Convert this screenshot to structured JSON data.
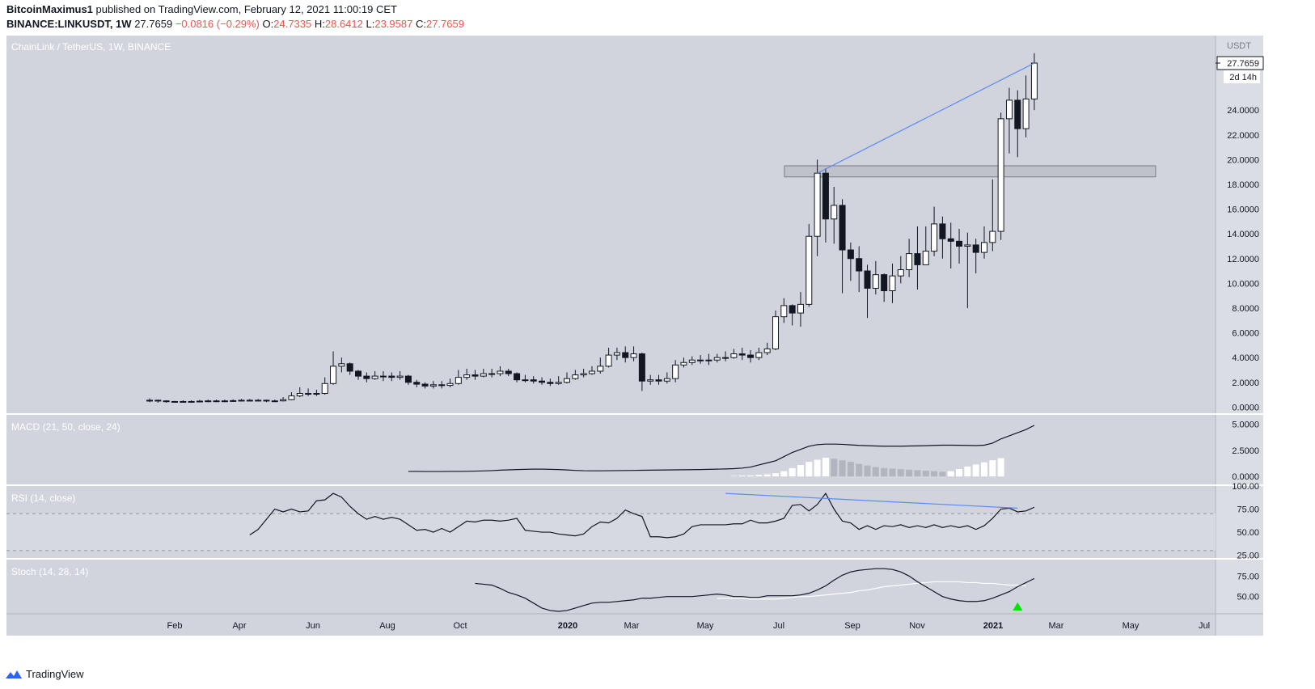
{
  "header": {
    "author": "BitcoinMaximus1",
    "published": " published on TradingView.com, February 12, 2021 11:00:19 CET",
    "symbol": "BINANCE:LINKUSDT, 1W",
    "price": "27.7659",
    "change": "−0.0816 (−0.29%)",
    "o_label": "O:",
    "o": "24.7335",
    "h_label": "H:",
    "h": "28.6412",
    "l_label": "L:",
    "l": "23.9587",
    "c_label": "C:",
    "c": "27.7659"
  },
  "main_title": "ChainLink / TetherUS, 1W, BINANCE",
  "axis_unit": "USDT",
  "price_tag": "27.7659",
  "countdown": "2d 14h",
  "footer_brand": "TradingView",
  "colors": {
    "background": "#d1d4dc",
    "candle_up": "#ffffff",
    "candle_down": "#131722",
    "trendline": "#5b8def",
    "zone_fill": "#bfc2c8",
    "macd_hist": "#b2b5be",
    "stoch_signal": "#ffffff",
    "arrow": "#00e600"
  },
  "chart_data": [
    {
      "type": "candlestick",
      "title": "ChainLink / TetherUS, 1W, BINANCE",
      "ylabel": "USDT",
      "ylim": [
        -0.5,
        29.5
      ],
      "y_ticks": [
        "0.0000",
        "2.0000",
        "4.0000",
        "6.0000",
        "8.0000",
        "10.0000",
        "12.0000",
        "14.0000",
        "16.0000",
        "18.0000",
        "20.0000",
        "22.0000",
        "24.0000"
      ],
      "x_ticks": [
        "Feb",
        "Apr",
        "Jun",
        "Aug",
        "Oct",
        "2020",
        "Mar",
        "May",
        "Jul",
        "Sep",
        "Nov",
        "2021",
        "Mar",
        "May",
        "Jul"
      ],
      "closes": [
        0.55,
        0.5,
        0.45,
        0.42,
        0.45,
        0.45,
        0.48,
        0.5,
        0.5,
        0.5,
        0.52,
        0.55,
        0.55,
        0.55,
        0.5,
        0.5,
        0.6,
        0.9,
        1.1,
        1.1,
        1.1,
        1.9,
        3.3,
        3.5,
        2.9,
        2.5,
        2.3,
        2.5,
        2.5,
        2.4,
        2.5,
        2.0,
        1.85,
        1.7,
        1.8,
        1.75,
        1.9,
        2.4,
        2.6,
        2.5,
        2.7,
        2.7,
        2.9,
        2.7,
        2.2,
        2.2,
        2.1,
        2.0,
        1.9,
        2.0,
        2.3,
        2.6,
        2.7,
        2.9,
        3.3,
        4.2,
        4.4,
        4.0,
        4.3,
        2.1,
        2.2,
        2.1,
        2.3,
        3.4,
        3.6,
        3.8,
        3.8,
        3.8,
        4.0,
        4.0,
        4.3,
        4.2,
        4.0,
        4.4,
        4.7,
        7.3,
        8.2,
        7.6,
        8.3,
        13.8,
        18.9,
        15.2,
        16.3,
        12.7,
        12.0,
        11.0,
        9.6,
        10.7,
        9.4,
        10.6,
        11.1,
        12.4,
        11.5,
        12.6,
        14.8,
        13.6,
        13.4,
        13.0,
        13.1,
        12.5,
        13.3,
        14.2,
        23.3,
        24.8,
        22.5,
        24.9,
        27.8
      ],
      "highs": [
        0.7,
        0.6,
        0.55,
        0.5,
        0.55,
        0.55,
        0.58,
        0.6,
        0.6,
        0.6,
        0.62,
        0.65,
        0.65,
        0.65,
        0.6,
        0.6,
        0.8,
        1.2,
        1.6,
        1.5,
        1.4,
        2.4,
        4.5,
        4.0,
        3.6,
        3.0,
        2.8,
        2.9,
        2.9,
        2.8,
        2.9,
        2.6,
        2.2,
        2.0,
        2.1,
        2.1,
        2.3,
        3.0,
        3.1,
        3.0,
        3.1,
        3.1,
        3.3,
        3.1,
        2.8,
        2.6,
        2.5,
        2.4,
        2.3,
        2.5,
        2.8,
        3.0,
        3.1,
        3.3,
        4.0,
        4.8,
        4.8,
        4.9,
        4.9,
        4.4,
        2.6,
        2.6,
        2.8,
        3.8,
        4.0,
        4.1,
        4.2,
        4.3,
        4.3,
        4.5,
        4.7,
        4.8,
        4.6,
        4.8,
        5.2,
        7.8,
        8.8,
        8.3,
        9.3,
        14.8,
        20.0,
        19.3,
        17.8,
        16.8,
        13.3,
        13.0,
        11.5,
        11.8,
        10.8,
        11.6,
        12.2,
        13.6,
        14.6,
        14.6,
        16.2,
        15.4,
        14.9,
        14.4,
        14.1,
        13.6,
        14.6,
        18.4,
        23.8,
        25.8,
        25.6,
        26.8,
        28.6
      ],
      "lows": [
        0.4,
        0.35,
        0.35,
        0.35,
        0.35,
        0.35,
        0.38,
        0.4,
        0.4,
        0.4,
        0.42,
        0.45,
        0.45,
        0.45,
        0.4,
        0.4,
        0.45,
        0.55,
        0.8,
        0.9,
        0.9,
        1.0,
        1.8,
        2.8,
        2.6,
        2.2,
        2.0,
        2.2,
        2.1,
        2.1,
        2.2,
        1.8,
        1.6,
        1.5,
        1.5,
        1.5,
        1.6,
        1.8,
        2.2,
        2.2,
        2.4,
        2.4,
        2.5,
        2.5,
        2.0,
        2.0,
        1.9,
        1.8,
        1.7,
        1.8,
        1.9,
        2.2,
        2.4,
        2.6,
        2.7,
        3.2,
        3.8,
        3.6,
        3.7,
        1.3,
        1.8,
        1.8,
        1.9,
        2.0,
        3.2,
        3.4,
        3.5,
        3.4,
        3.6,
        3.7,
        3.9,
        3.8,
        3.6,
        3.8,
        4.2,
        4.6,
        6.8,
        6.6,
        6.5,
        8.1,
        12.2,
        13.3,
        13.2,
        9.2,
        10.2,
        9.3,
        7.2,
        9.1,
        8.5,
        8.4,
        10.0,
        10.5,
        9.5,
        11.5,
        12.2,
        12.0,
        11.2,
        11.6,
        8.0,
        10.8,
        12.0,
        12.6,
        13.5,
        20.5,
        20.2,
        21.8,
        24.0
      ],
      "resistance_zone": [
        18.6,
        19.5
      ],
      "trendline": [
        [
          18.9,
          80
        ],
        [
          27.8,
          106
        ]
      ]
    },
    {
      "type": "line",
      "title": "MACD (21, 50, close, 24)",
      "y_ticks": [
        "0.0000",
        "2.5000",
        "5.0000"
      ],
      "macd": [
        0.48,
        0.48,
        0.47,
        0.47,
        0.47,
        0.48,
        0.48,
        0.49,
        0.51,
        0.53,
        0.56,
        0.6,
        0.63,
        0.66,
        0.68,
        0.7,
        0.7,
        0.68,
        0.66,
        0.62,
        0.58,
        0.55,
        0.54,
        0.54,
        0.55,
        0.56,
        0.57,
        0.58,
        0.59,
        0.6,
        0.61,
        0.62,
        0.63,
        0.64,
        0.65,
        0.66,
        0.68,
        0.7,
        0.72,
        0.75,
        0.8,
        0.9,
        1.1,
        1.3,
        1.5,
        1.9,
        2.3,
        2.6,
        2.9,
        3.05,
        3.1,
        3.1,
        3.08,
        3.03,
        2.98,
        2.95,
        2.92,
        2.9,
        2.9,
        2.9,
        2.92,
        2.93,
        2.95,
        2.98,
        3.0,
        3.0,
        2.99,
        2.98,
        2.96,
        3.0,
        3.2,
        3.6,
        3.9,
        4.2,
        4.5,
        4.9
      ],
      "histogram": [
        0.05,
        0.08,
        0.1,
        0.15,
        0.2,
        0.3,
        0.5,
        0.8,
        1.1,
        1.4,
        1.6,
        1.8,
        1.7,
        1.55,
        1.4,
        1.2,
        1.05,
        0.9,
        0.8,
        0.75,
        0.7,
        0.65,
        0.6,
        0.55,
        0.5,
        0.45,
        0.5,
        0.7,
        0.95,
        1.15,
        1.35,
        1.55,
        1.75
      ],
      "ylim": [
        -0.3,
        5.6
      ]
    },
    {
      "type": "line",
      "title": "RSI (14, close)",
      "y_ticks": [
        "25.00",
        "50.00",
        "75.00",
        "100.00"
      ],
      "levels": [
        30,
        70
      ],
      "rsi": [
        47,
        53,
        64,
        75,
        72,
        75,
        72,
        73,
        84,
        85,
        92,
        88,
        78,
        70,
        64,
        67,
        64,
        66,
        64,
        58,
        52,
        53,
        50,
        54,
        50,
        56,
        62,
        61,
        63,
        63,
        62,
        63,
        65,
        52,
        51,
        50,
        50,
        48,
        47,
        46,
        48,
        56,
        61,
        60,
        65,
        74,
        70,
        67,
        45,
        45,
        44,
        45,
        48,
        56,
        58,
        58,
        58,
        58,
        59,
        59,
        63,
        60,
        60,
        62,
        65,
        79,
        80,
        73,
        80,
        92,
        75,
        62,
        60,
        53,
        57,
        53,
        57,
        56,
        58,
        55,
        57,
        55,
        58,
        55,
        57,
        55,
        57,
        53,
        57,
        65,
        75,
        76,
        72,
        73,
        77
      ],
      "divergence": [
        [
          92,
          69
        ],
        [
          76,
          104
        ]
      ],
      "ylim": [
        22,
        100
      ]
    },
    {
      "type": "line",
      "title": "Stoch (14, 28, 14)",
      "y_ticks": [
        "50.00",
        "75.00"
      ],
      "k": [
        66,
        65,
        64,
        60,
        55,
        52,
        48,
        42,
        36,
        33,
        32,
        33,
        36,
        39,
        42,
        43,
        43,
        44,
        45,
        46,
        48,
        48,
        49,
        50,
        50,
        50,
        50,
        51,
        52,
        53,
        52,
        50,
        50,
        49,
        49,
        51,
        51,
        51,
        51,
        52,
        54,
        58,
        63,
        70,
        76,
        80,
        82,
        83,
        84,
        84,
        83,
        80,
        75,
        68,
        62,
        56,
        50,
        47,
        45,
        44,
        44,
        45,
        48,
        52,
        56,
        62,
        67,
        72
      ],
      "d": [
        48,
        48,
        48,
        48,
        47,
        47,
        47,
        47,
        48,
        49,
        50,
        50,
        51,
        52,
        53,
        54,
        55,
        57,
        58,
        60,
        62,
        63,
        64,
        65,
        66,
        67,
        68,
        68,
        68,
        68,
        67,
        67,
        66,
        66,
        65,
        64,
        64,
        63
      ],
      "ylim": [
        30,
        95
      ]
    }
  ]
}
